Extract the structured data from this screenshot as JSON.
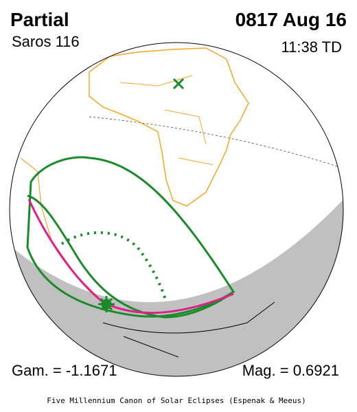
{
  "header": {
    "title": "Partial",
    "date": "0817 Aug 16",
    "saros": "Saros 116",
    "time": "11:38 TD"
  },
  "footer": {
    "gamma": "Gam. = -1.1671",
    "magnitude": "Mag. = 0.6921",
    "credit": "Five Millennium Canon of Solar Eclipses (Espenak & Meeus)"
  }
}
